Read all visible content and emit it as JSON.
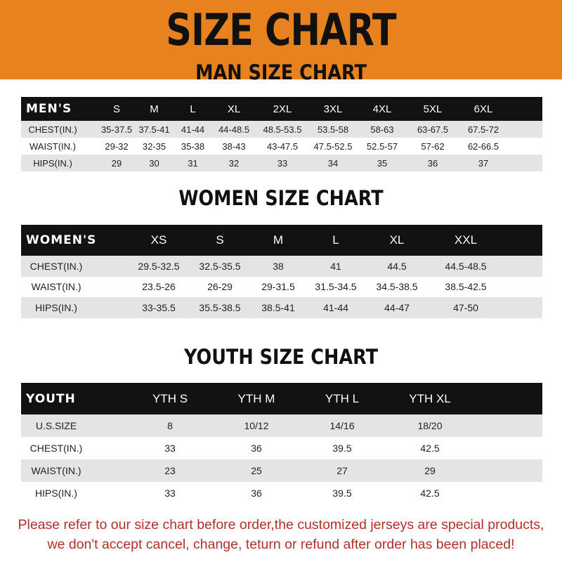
{
  "banner": {
    "title": "SIZE CHART",
    "color": "#e8821e"
  },
  "men": {
    "title": "MAN SIZE CHART",
    "header": [
      "MEN'S",
      "S",
      "M",
      "L",
      "XL",
      "2XL",
      "3XL",
      "4XL",
      "5XL",
      "6XL"
    ],
    "rows": [
      [
        "CHEST(IN.)",
        "35-37.5",
        "37.5-41",
        "41-44",
        "44-48.5",
        "48.5-53.5",
        "53.5-58",
        "58-63",
        "63-67.5",
        "67.5-72"
      ],
      [
        "WAIST(IN.)",
        "29-32",
        "32-35",
        "35-38",
        "38-43",
        "43-47.5",
        "47.5-52.5",
        "52.5-57",
        "57-62",
        "62-66.5"
      ],
      [
        "HIPS(IN.)",
        "29",
        "30",
        "31",
        "32",
        "33",
        "34",
        "35",
        "36",
        "37"
      ]
    ]
  },
  "women": {
    "title": "WOMEN SIZE CHART",
    "header": [
      "WOMEN'S",
      "XS",
      "S",
      "M",
      "L",
      "XL",
      "XXL"
    ],
    "rows": [
      [
        "CHEST(IN.)",
        "29.5-32.5",
        "32.5-35.5",
        "38",
        "41",
        "44.5",
        "44.5-48.5"
      ],
      [
        "WAIST(IN.)",
        "23.5-26",
        "26-29",
        "29-31.5",
        "31.5-34.5",
        "34.5-38.5",
        "38.5-42.5"
      ],
      [
        "HIPS(IN.)",
        "33-35.5",
        "35.5-38.5",
        "38.5-41",
        "41-44",
        "44-47",
        "47-50"
      ]
    ]
  },
  "youth": {
    "title": "YOUTH SIZE CHART",
    "header": [
      "YOUTH",
      "YTH S",
      "YTH M",
      "YTH L",
      "YTH XL"
    ],
    "rows": [
      [
        "U.S.SIZE",
        "8",
        "10/12",
        "14/16",
        "18/20"
      ],
      [
        "CHEST(IN.)",
        "33",
        "36",
        "39.5",
        "42.5"
      ],
      [
        "WAIST(IN.)",
        "23",
        "25",
        "27",
        "29"
      ],
      [
        "HIPS(IN.)",
        "33",
        "36",
        "39.5",
        "42.5"
      ]
    ]
  },
  "note": {
    "line1": "Please refer to our size chart before order,the customized jerseys are special products,",
    "line2": "we don't accept cancel, change, teturn or refund after order has been placed!",
    "color": "#b3302a"
  }
}
